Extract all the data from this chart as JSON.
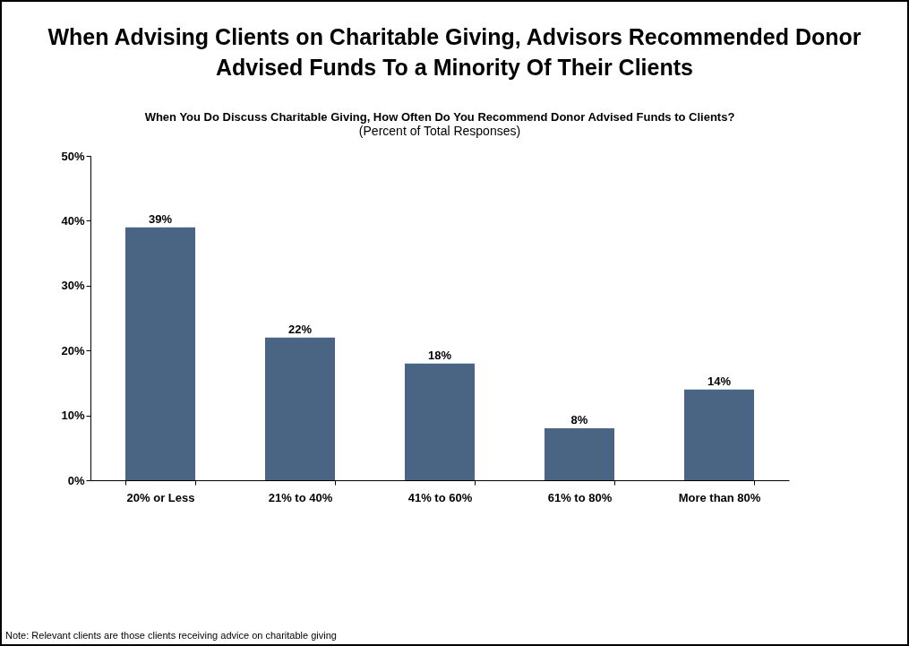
{
  "chart_data": {
    "type": "bar",
    "title": "When Advising Clients on Charitable Giving, Advisors Recommended Donor Advised Funds To a Minority Of Their Clients",
    "subtitle": "When You Do Discuss Charitable Giving, How Often Do You Recommend Donor Advised Funds to Clients?",
    "categories": [
      "20% or Less",
      "21% to 40%",
      "41% to 60%",
      "61% to 80%",
      "More than 80%"
    ],
    "values": [
      39,
      22,
      18,
      8,
      14
    ],
    "value_labels": [
      "39%",
      "22%",
      "18%",
      "8%",
      "14%"
    ],
    "color": "#4a6583",
    "ylim": [
      0,
      50
    ],
    "yticks": [
      {
        "value": 0,
        "label": "0%"
      },
      {
        "value": 10,
        "label": "10%"
      },
      {
        "value": 20,
        "label": "20%"
      },
      {
        "value": 30,
        "label": "30%"
      },
      {
        "value": 40,
        "label": "40%"
      },
      {
        "value": 50,
        "label": "50%"
      }
    ],
    "annotations": [
      "(Percent of Total Responses)",
      "Note: Relevant clients are those clients receiving advice on charitable giving"
    ]
  }
}
